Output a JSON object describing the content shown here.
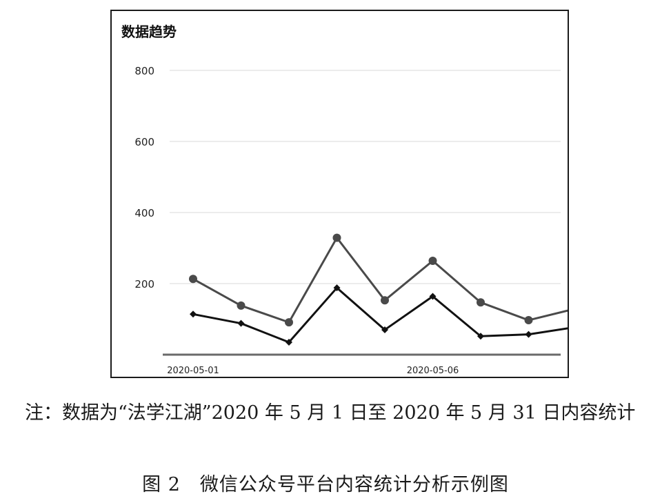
{
  "chart_data": {
    "type": "line",
    "title": "数据趋势",
    "x": [
      "2020-05-01",
      "2020-05-02",
      "2020-05-03",
      "2020-05-04",
      "2020-05-05",
      "2020-05-06",
      "2020-05-07",
      "2020-05-08",
      "2020-05-09"
    ],
    "x_tick_labels": [
      "2020-05-01",
      "2020-05-06"
    ],
    "y_ticks": [
      200,
      400,
      600,
      800
    ],
    "ylim": [
      0,
      800
    ],
    "grid": true,
    "series": [
      {
        "values": [
          213,
          138,
          91,
          329,
          153,
          264,
          147,
          97,
          130
        ],
        "color": "#4a4a4a",
        "marker": "circle"
      },
      {
        "values": [
          114,
          88,
          35,
          188,
          70,
          164,
          52,
          57,
          78
        ],
        "color": "#111111",
        "marker": "diamond"
      }
    ]
  },
  "note": "注：数据为“法学江湖”2020 年 5 月 1 日至 2020 年 5 月 31 日内容统计",
  "caption": "图 2　微信公众号平台内容统计分析示例图"
}
